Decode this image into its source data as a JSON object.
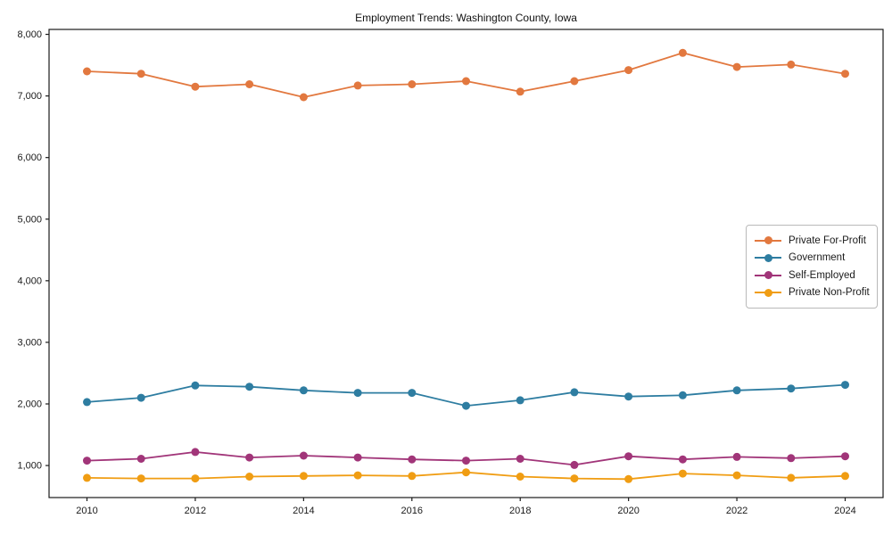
{
  "title": "Employment Trends: Washington County, Iowa",
  "chart_data": {
    "type": "line",
    "title": "Employment Trends: Washington County, Iowa",
    "xlabel": "",
    "ylabel": "",
    "grid": false,
    "x": [
      2010,
      2011,
      2012,
      2013,
      2014,
      2015,
      2016,
      2017,
      2018,
      2019,
      2020,
      2021,
      2022,
      2023,
      2024
    ],
    "series": [
      {
        "name": "Private For-Profit",
        "color": "#e2783f",
        "values": [
          7400,
          7360,
          7150,
          7190,
          6980,
          7170,
          7190,
          7240,
          7070,
          7240,
          7420,
          7700,
          7470,
          7510,
          7360
        ]
      },
      {
        "name": "Government",
        "color": "#2e7da1",
        "values": [
          2030,
          2100,
          2300,
          2280,
          2220,
          2180,
          2180,
          1970,
          2060,
          2190,
          2120,
          2140,
          2220,
          2250,
          2310
        ]
      },
      {
        "name": "Self-Employed",
        "color": "#a13579",
        "values": [
          1080,
          1110,
          1220,
          1130,
          1160,
          1130,
          1100,
          1080,
          1110,
          1010,
          1150,
          1100,
          1140,
          1120,
          1150
        ]
      },
      {
        "name": "Private Non-Profit",
        "color": "#f09d13",
        "values": [
          800,
          790,
          790,
          820,
          830,
          840,
          830,
          890,
          820,
          790,
          780,
          870,
          840,
          800,
          830
        ]
      }
    ],
    "xlim": [
      2009.3,
      2024.7
    ],
    "ylim": [
      480,
      8080
    ],
    "xticks": [
      2010,
      2012,
      2014,
      2016,
      2018,
      2020,
      2022,
      2024
    ],
    "yticks": [
      1000,
      2000,
      3000,
      4000,
      5000,
      6000,
      7000,
      8000
    ],
    "ytick_labels": [
      "1,000",
      "2,000",
      "3,000",
      "4,000",
      "5,000",
      "6,000",
      "7,000",
      "8,000"
    ],
    "legend": {
      "position": "center-right",
      "entries": [
        "Private For-Profit",
        "Government",
        "Self-Employed",
        "Private Non-Profit"
      ]
    },
    "axis_color": "#1a1a1a",
    "background": "#ffffff"
  }
}
